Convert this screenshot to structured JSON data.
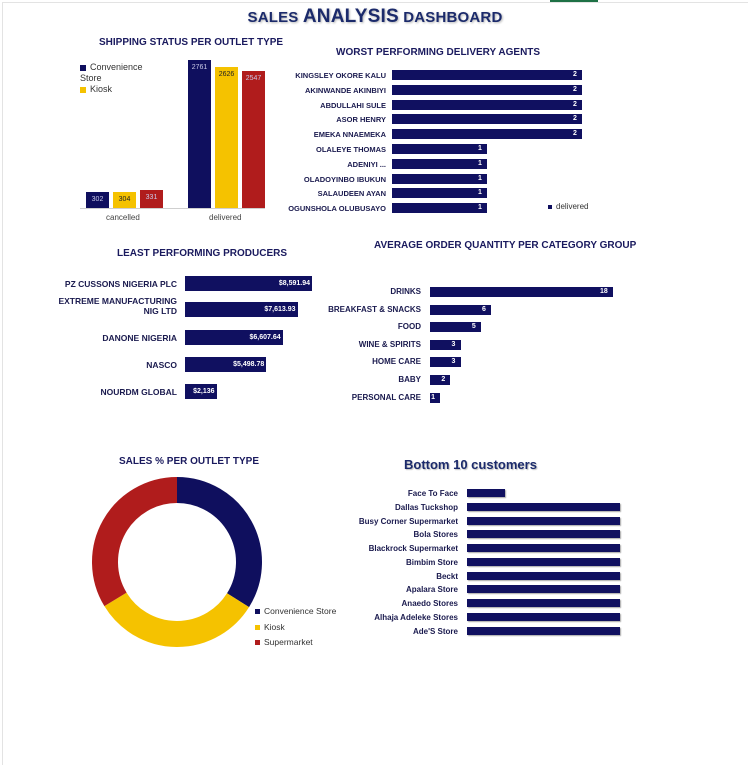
{
  "header": {
    "title_pre": "SALES ",
    "title_big": "ANALYSIS",
    "title_post": " DASHBOARD"
  },
  "colors": {
    "navy": "#0f0f5e",
    "yellow": "#f5c200",
    "red": "#b01c1c"
  },
  "chart_data": [
    {
      "id": "shipping",
      "type": "bar",
      "title": "SHIPPING STATUS PER OUTLET TYPE",
      "categories": [
        "cancelled",
        "delivered"
      ],
      "series": [
        {
          "name": "Convenience Store",
          "values": [
            302,
            2761
          ]
        },
        {
          "name": "Kiosk",
          "values": [
            304,
            2626
          ]
        },
        {
          "name": "Supermarket",
          "values": [
            331,
            2547
          ]
        }
      ]
    },
    {
      "id": "agents",
      "type": "bar",
      "title": "WORST PERFORMING DELIVERY AGENTS",
      "categories": [
        "KINGSLEY OKORE  KALU",
        "AKINWANDE AKINBIYI",
        "ABDULLAHI SULE",
        "ASOR HENRY",
        "EMEKA NNAEMEKA",
        "OLALEYE           THOMAS",
        "ADENIYI                 ...",
        "OLADOYINBO  IBUKUN",
        "SALAUDEEN  AYAN",
        "OGUNSHOLA OLUBUSAYO"
      ],
      "values": [
        2,
        2,
        2,
        2,
        2,
        1,
        1,
        1,
        1,
        1
      ],
      "legend": "delivered"
    },
    {
      "id": "producers",
      "type": "bar",
      "title": "LEAST PERFORMING PRODUCERS",
      "categories": [
        "PZ CUSSONS NIGERIA PLC",
        "EXTREME MANUFACTURING NIG LTD",
        "DANONE NIGERIA",
        "NASCO",
        "NOURDM GLOBAL"
      ],
      "values": [
        8591.94,
        7613.93,
        6607.64,
        5498.78,
        2136
      ],
      "labels": [
        "$8,591.94",
        "$7,613.93",
        "$6,607.64",
        "$5,498.78",
        "$2,136"
      ]
    },
    {
      "id": "category",
      "type": "bar",
      "title": "AVERAGE ORDER QUANTITY PER CATEGORY GROUP",
      "categories": [
        "DRINKS",
        "BREAKFAST & SNACKS",
        "FOOD",
        "WINE & SPIRITS",
        "HOME CARE",
        "BABY",
        "PERSONAL CARE"
      ],
      "values": [
        18,
        6,
        5,
        3,
        3,
        2,
        1
      ]
    },
    {
      "id": "outlet_pct",
      "type": "pie",
      "title": "SALES % PER OUTLET TYPE",
      "categories": [
        "Convenience Store",
        "Kiosk",
        "Supermarket"
      ],
      "values": [
        33.9,
        32.4,
        33.7
      ]
    },
    {
      "id": "customers",
      "type": "bar",
      "title": "Bottom 10 customers",
      "categories": [
        "Face To Face",
        "Dallas Tuckshop",
        "Busy Corner Supermarket",
        "Bola Stores",
        "Blackrock Supermarket",
        "Bimbim Store",
        "Beckt",
        "Apalara Store",
        "Anaedo Stores",
        "Alhaja Adeleke Stores",
        "Ade'S Store"
      ],
      "values": [
        1,
        4,
        4,
        4,
        4,
        4,
        4,
        4,
        4,
        4,
        4
      ]
    }
  ]
}
